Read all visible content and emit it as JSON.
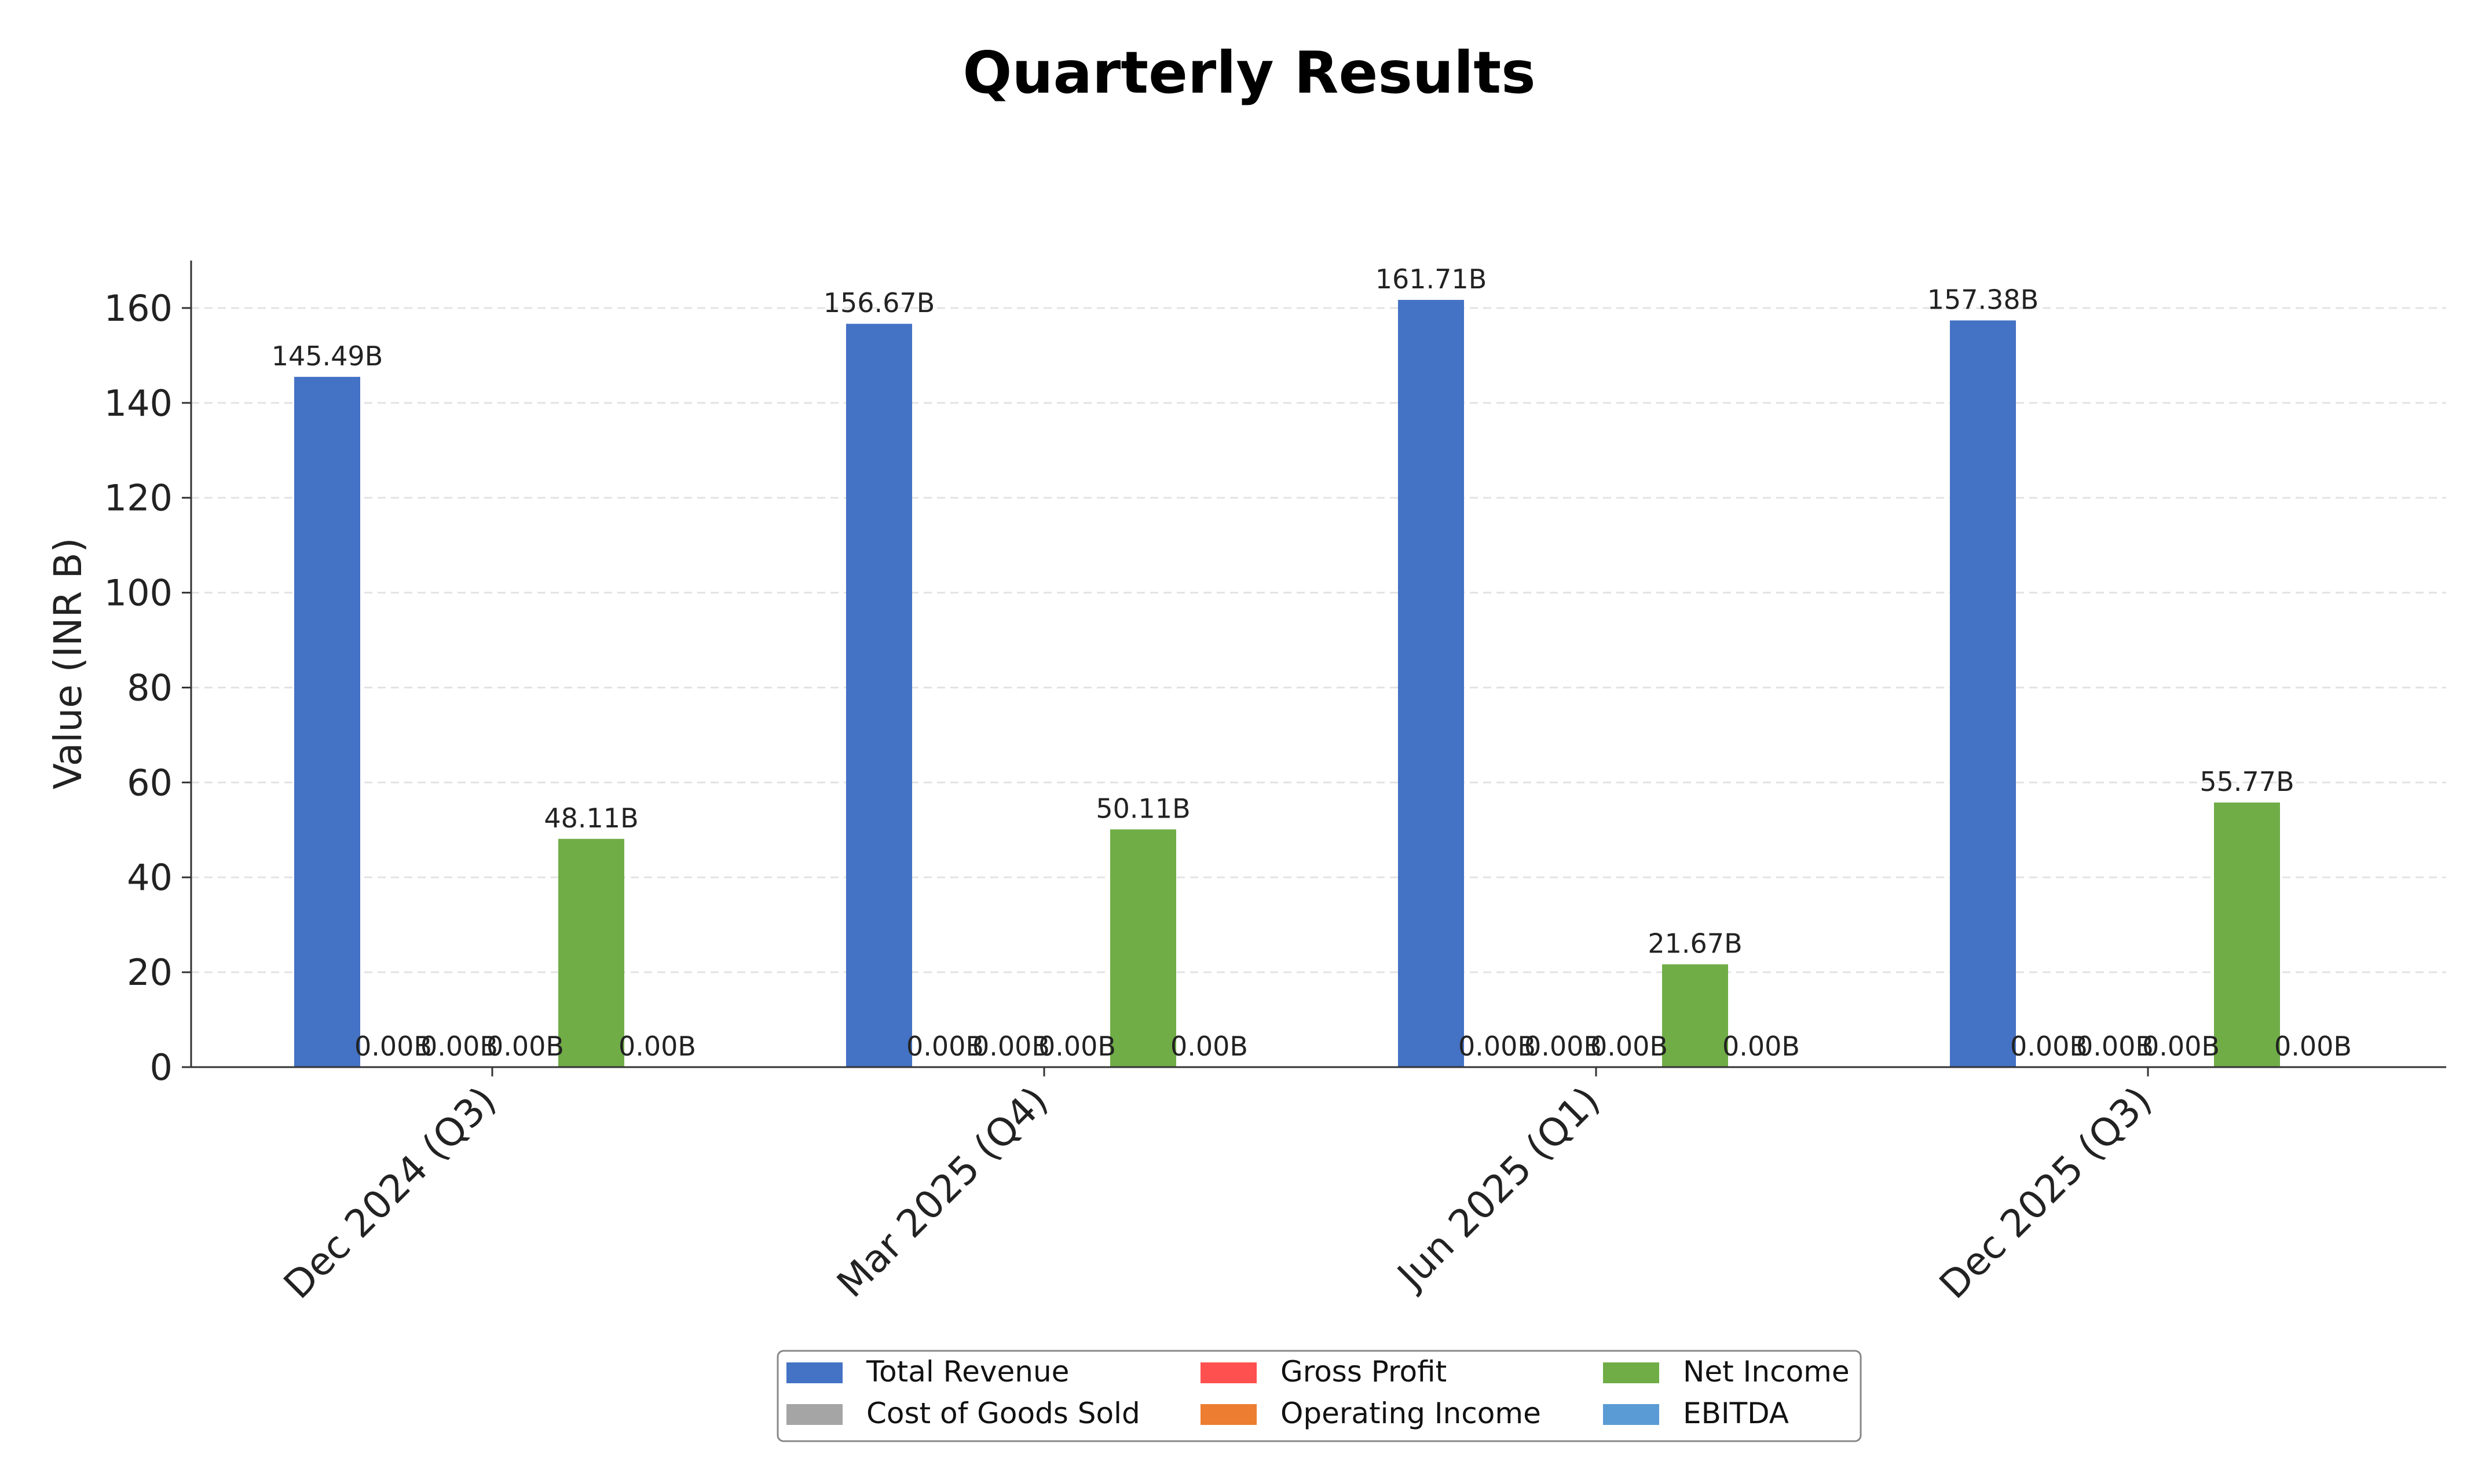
{
  "chart_data": {
    "type": "bar",
    "title": "Quarterly Results",
    "xlabel": "",
    "ylabel": "Value (INR B)",
    "ylim": [
      0,
      170
    ],
    "yticks": [
      0,
      20,
      40,
      60,
      80,
      100,
      120,
      140,
      160
    ],
    "grid": true,
    "legend_position": "bottom-center",
    "categories": [
      "Dec 2024 (Q3)",
      "Mar 2025 (Q4)",
      "Jun 2025 (Q1)",
      "Dec 2025 (Q3)"
    ],
    "series": [
      {
        "name": "Total Revenue",
        "color": "#4472c4",
        "values": [
          145.49,
          156.67,
          161.71,
          157.38
        ],
        "labels": [
          "145.49B",
          "156.67B",
          "161.71B",
          "157.38B"
        ]
      },
      {
        "name": "Cost of Goods Sold",
        "color": "#a5a5a5",
        "values": [
          0,
          0,
          0,
          0
        ],
        "labels": [
          "0.00B",
          "0.00B",
          "0.00B",
          "0.00B"
        ]
      },
      {
        "name": "Gross Profit",
        "color": "#ff5050",
        "values": [
          0,
          0,
          0,
          0
        ],
        "labels": [
          "0.00B",
          "0.00B",
          "0.00B",
          "0.00B"
        ]
      },
      {
        "name": "Operating Income",
        "color": "#ed7d31",
        "values": [
          0,
          0,
          0,
          0
        ],
        "labels": [
          "0.00B",
          "0.00B",
          "0.00B",
          "0.00B"
        ]
      },
      {
        "name": "Net Income",
        "color": "#70ad47",
        "values": [
          48.11,
          50.11,
          21.67,
          55.77
        ],
        "labels": [
          "48.11B",
          "50.11B",
          "21.67B",
          "55.77B"
        ]
      },
      {
        "name": "EBITDA",
        "color": "#5b9bd5",
        "values": [
          0,
          0,
          0,
          0
        ],
        "labels": [
          "0.00B",
          "0.00B",
          "0.00B",
          "0.00B"
        ]
      }
    ]
  }
}
